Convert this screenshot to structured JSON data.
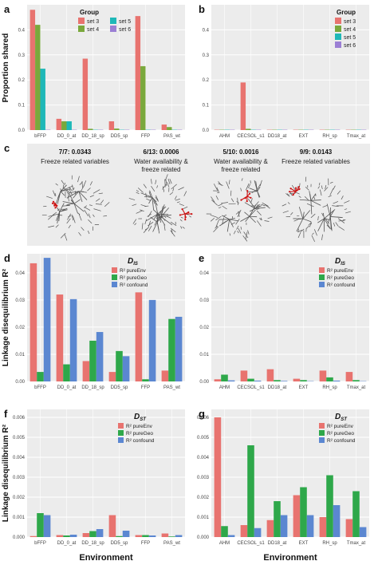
{
  "colors": {
    "set3": "#e8736f",
    "set4": "#7aa83c",
    "set5": "#1fb8b8",
    "set6": "#9b7fd4",
    "pureEnv": "#e8736f",
    "pureGeo": "#2ea84a",
    "confound": "#5b87d1",
    "panel_bg": "#ececec",
    "grid": "#ffffff",
    "highlight": "#cc1111",
    "tree": "#555555"
  },
  "y_labels": {
    "top": "Proportion shared",
    "middle": "Linkage disequilibrium R²",
    "bottom": "Linkage disequilibrium R²"
  },
  "x_labels": {
    "left": "Environment",
    "right": "Environment"
  },
  "legend_group": {
    "title": "Group",
    "entries": [
      "set 3",
      "set 4",
      "set 5",
      "set 6"
    ]
  },
  "legend_r2": {
    "entries": [
      "R² pureEnv",
      "R² pureGeo",
      "R² confound"
    ]
  },
  "panel_c": {
    "items": [
      {
        "stat": "7/7: 0.0343",
        "desc": [
          "Freeze related variables"
        ]
      },
      {
        "stat": "6/13: 0.0006",
        "desc": [
          "Water availability &",
          "freeze related"
        ]
      },
      {
        "stat": "5/10: 0.0016",
        "desc": [
          "Water availability &",
          "freeze related"
        ]
      },
      {
        "stat": "9/9: 0.0143",
        "desc": [
          "Freeze related variables"
        ]
      }
    ]
  },
  "chart_data": [
    {
      "panel": "a",
      "type": "bar",
      "categories": [
        "bFFP",
        "DD_0_at",
        "DD_18_sp",
        "DD5_sp",
        "FFP",
        "PAS_wt"
      ],
      "ylim": [
        0,
        0.5
      ],
      "yticks": [
        "0.0",
        "0.1",
        "0.2",
        "0.3",
        "0.4"
      ],
      "ytick_values": [
        0,
        0.1,
        0.2,
        0.3,
        0.4
      ],
      "series": [
        {
          "name": "set 3",
          "values": [
            0.48,
            0.045,
            0.285,
            0.035,
            0.455,
            0.022
          ]
        },
        {
          "name": "set 4",
          "values": [
            0.42,
            0.035,
            0.005,
            0.006,
            0.255,
            0.012
          ]
        },
        {
          "name": "set 5",
          "values": [
            0.245,
            0.035,
            0.0,
            0.0,
            0.0,
            0.0
          ]
        },
        {
          "name": "set 6",
          "values": [
            0.0,
            0.0,
            0.0,
            0.0,
            0.0,
            0.0
          ]
        }
      ]
    },
    {
      "panel": "b",
      "type": "bar",
      "categories": [
        "AHM",
        "CECSOL_s1",
        "DD18_at",
        "EXT",
        "RH_sp",
        "Tmax_at"
      ],
      "ylim": [
        0,
        0.5
      ],
      "yticks": [
        "0.0",
        "0.1",
        "0.2",
        "0.3",
        "0.4"
      ],
      "ytick_values": [
        0,
        0.1,
        0.2,
        0.3,
        0.4
      ],
      "series": [
        {
          "name": "set 3",
          "values": [
            0.0,
            0.19,
            0.0,
            0.0,
            0.0,
            0.0
          ]
        },
        {
          "name": "set 4",
          "values": [
            0.0,
            0.005,
            0.0,
            0.0,
            0.0,
            0.0
          ]
        },
        {
          "name": "set 5",
          "values": [
            0.0,
            0.0,
            0.0,
            0.0,
            0.0,
            0.0
          ]
        },
        {
          "name": "set 6",
          "values": [
            0.0,
            0.0,
            0.0,
            0.0,
            0.0,
            0.0
          ]
        }
      ]
    },
    {
      "panel": "d",
      "type": "bar",
      "statistic": "D_IS",
      "categories": [
        "bFFP",
        "DD_0_at",
        "DD_18_sp",
        "DD5_sp",
        "FFP",
        "PAS_wt"
      ],
      "ylim": [
        0,
        0.047
      ],
      "yticks": [
        "0.00",
        "0.01",
        "0.02",
        "0.03",
        "0.04"
      ],
      "ytick_values": [
        0,
        0.01,
        0.02,
        0.03,
        0.04
      ],
      "series": [
        {
          "name": "R² pureEnv",
          "values": [
            0.0435,
            0.032,
            0.0075,
            0.0035,
            0.0328,
            0.004
          ]
        },
        {
          "name": "R² pureGeo",
          "values": [
            0.0035,
            0.0063,
            0.015,
            0.0112,
            0.0008,
            0.023
          ]
        },
        {
          "name": "R² confound",
          "values": [
            0.0455,
            0.0303,
            0.0182,
            0.0093,
            0.03,
            0.0238
          ]
        }
      ]
    },
    {
      "panel": "e",
      "type": "bar",
      "statistic": "D_IS",
      "categories": [
        "AHM",
        "CECSOL_s1",
        "DD18_at",
        "EXT",
        "RH_sp",
        "Tmax_at"
      ],
      "ylim": [
        0,
        0.047
      ],
      "yticks": [
        "0.00",
        "0.01",
        "0.02",
        "0.03",
        "0.04"
      ],
      "ytick_values": [
        0,
        0.01,
        0.02,
        0.03,
        0.04
      ],
      "series": [
        {
          "name": "R² pureEnv",
          "values": [
            0.0008,
            0.004,
            0.0045,
            0.001,
            0.004,
            0.0035
          ]
        },
        {
          "name": "R² pureGeo",
          "values": [
            0.0025,
            0.001,
            0.0005,
            0.0005,
            0.0015,
            0.0005
          ]
        },
        {
          "name": "R² confound",
          "values": [
            0.0004,
            0.0003,
            0.0002,
            0.0001,
            0.0003,
            0.0001
          ]
        }
      ]
    },
    {
      "panel": "f",
      "type": "bar",
      "statistic": "D_ST",
      "categories": [
        "bFFP",
        "DD_0_at",
        "DD_18_sp",
        "DD5_sp",
        "FFP",
        "PAS_wt"
      ],
      "ylim": [
        0,
        0.0064
      ],
      "yticks": [
        "0.000",
        "0.001",
        "0.002",
        "0.003",
        "0.004",
        "0.005",
        "0.006"
      ],
      "ytick_values": [
        0,
        0.001,
        0.002,
        0.003,
        0.004,
        0.005,
        0.006
      ],
      "series": [
        {
          "name": "R² pureEnv",
          "values": [
            5e-05,
            0.0001,
            0.0002,
            0.0011,
            0.0001,
            0.00018
          ]
        },
        {
          "name": "R² pureGeo",
          "values": [
            0.0012,
            8e-05,
            0.0003,
            5e-05,
            0.0001,
            3e-05
          ]
        },
        {
          "name": "R² confound",
          "values": [
            0.0011,
            0.00012,
            0.0004,
            0.00032,
            8e-05,
            0.0001
          ]
        }
      ]
    },
    {
      "panel": "g",
      "type": "bar",
      "statistic": "D_ST",
      "categories": [
        "AHM",
        "CECSOL_s1",
        "DD18_at",
        "EXT",
        "RH_sp",
        "Tmax_at"
      ],
      "ylim": [
        0,
        0.0064
      ],
      "yticks": [
        "0.000",
        "0.001",
        "0.002",
        "0.003",
        "0.004",
        "0.005",
        "0.006"
      ],
      "ytick_values": [
        0,
        0.001,
        0.002,
        0.003,
        0.004,
        0.005,
        0.006
      ],
      "series": [
        {
          "name": "R² pureEnv",
          "values": [
            0.006,
            0.0006,
            0.00085,
            0.0021,
            0.001,
            0.0009
          ]
        },
        {
          "name": "R² pureGeo",
          "values": [
            0.00055,
            0.0046,
            0.0018,
            0.0025,
            0.0031,
            0.0023
          ]
        },
        {
          "name": "R² confound",
          "values": [
            0.0001,
            0.00045,
            0.0011,
            0.0011,
            0.0016,
            0.0005
          ]
        }
      ]
    }
  ]
}
